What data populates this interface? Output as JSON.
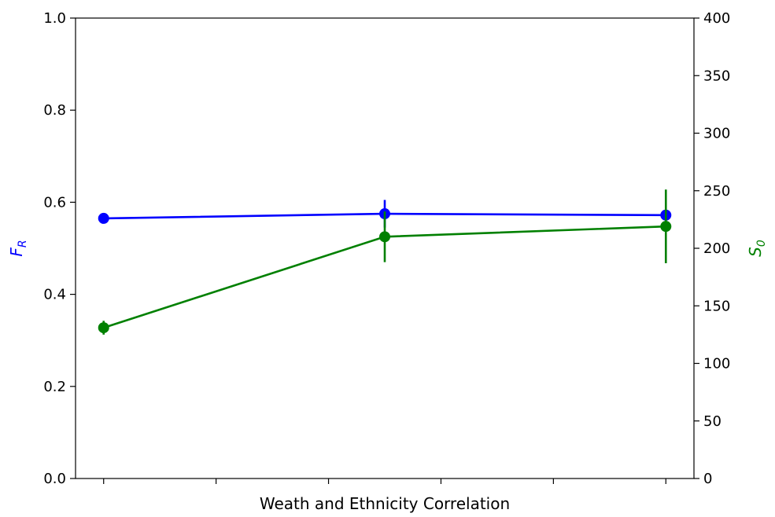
{
  "chart_data": {
    "type": "line",
    "xlabel": "Weath and Ethnicity Correlation",
    "x_ticks": [
      "",
      "",
      "",
      "",
      "",
      ""
    ],
    "y_left": {
      "label_main": "F",
      "label_sub": "R",
      "color": "#0000ff",
      "ylim": [
        0,
        1.0
      ],
      "ticks": [
        "0.0",
        "0.2",
        "0.4",
        "0.6",
        "0.8",
        "1.0"
      ]
    },
    "y_right": {
      "label_main": "S",
      "label_sub": "0",
      "color": "#008000",
      "ylim": [
        0,
        400
      ],
      "ticks": [
        "0",
        "50",
        "100",
        "150",
        "200",
        "250",
        "300",
        "350",
        "400"
      ]
    },
    "series": [
      {
        "axis": "left",
        "color": "#0000ff",
        "x": [
          0,
          2.5,
          5.0
        ],
        "y": [
          0.565,
          0.575,
          0.572
        ],
        "err": [
          0.005,
          0.03,
          0.005
        ]
      },
      {
        "axis": "right",
        "color": "#008000",
        "x": [
          0,
          2.5,
          5.0
        ],
        "y": [
          131,
          210,
          219
        ],
        "err": [
          6,
          22,
          32
        ]
      }
    ]
  }
}
